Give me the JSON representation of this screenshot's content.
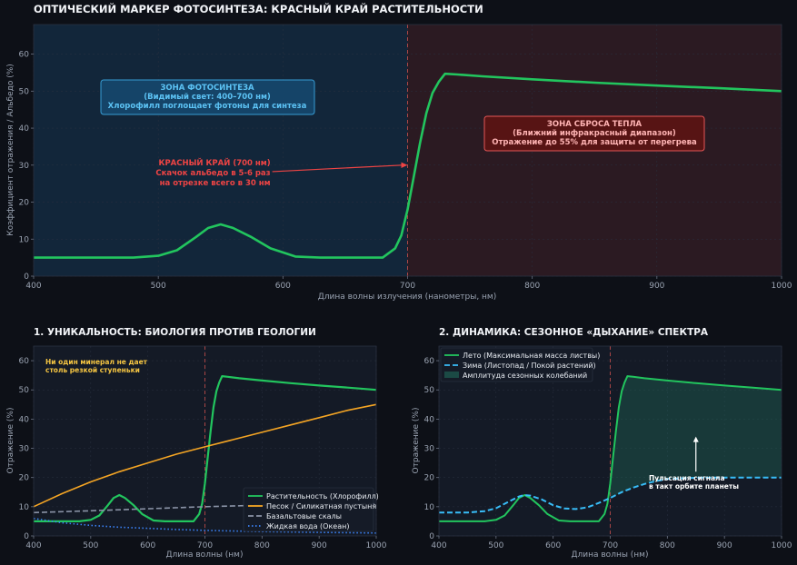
{
  "chart_data": [
    {
      "type": "line",
      "title": "ОПТИЧЕСКИЙ МАРКЕР ФОТОСИНТЕЗА: КРАСНЫЙ КРАЙ РАСТИТЕЛЬНОСТИ",
      "xlabel": "Длина волны излучения (нанометры, нм)",
      "ylabel": "Коэффициент отражения / Альбедо (%)",
      "xlim": [
        400,
        1000
      ],
      "ylim": [
        0,
        68
      ],
      "xticks": [
        400,
        500,
        600,
        700,
        800,
        900,
        1000
      ],
      "yticks": [
        0,
        10,
        20,
        30,
        40,
        50,
        60
      ],
      "series": [
        {
          "color": "#22c55e",
          "x": [
            400,
            450,
            480,
            500,
            515,
            530,
            540,
            550,
            560,
            575,
            590,
            610,
            630,
            650,
            680,
            690,
            695,
            700,
            705,
            710,
            715,
            720,
            725,
            730,
            740,
            760,
            800,
            850,
            900,
            950,
            1000
          ],
          "y": [
            5,
            5,
            5,
            5.5,
            7,
            10.5,
            13,
            14,
            13,
            10.5,
            7.5,
            5.3,
            5,
            5,
            5,
            7.5,
            11,
            18,
            27,
            36,
            44,
            49.5,
            52.5,
            54.7,
            54.5,
            54,
            53.2,
            52.3,
            51.5,
            50.8,
            50
          ]
        }
      ],
      "marker_x": 700,
      "zones": [
        {
          "from": 400,
          "to": 700,
          "color": "#12263a",
          "label_lines": [
            "ЗОНА ФОТОСИНТЕЗА",
            "(Видимый свет: 400–700 нм)",
            "Хлорофилл поглощает фотоны для синтеза"
          ]
        },
        {
          "from": 700,
          "to": 1000,
          "color": "#2b1a22",
          "label_lines": [
            "ЗОНА СБРОСА ТЕПЛА",
            "(Ближний инфракрасный диапазон)",
            "Отражение до 55% для защиты от перегрева"
          ]
        }
      ],
      "annotation": {
        "lines": [
          "КРАСНЫЙ КРАЙ (700 нм)",
          "Скачок альбедо в 5-6 раз",
          "на отрезке всего в 30 нм"
        ],
        "xy": [
          700,
          30
        ],
        "text_xy": [
          590,
          28
        ]
      },
      "grid": true,
      "legend": "none"
    },
    {
      "type": "line",
      "title": "1. УНИКАЛЬНОСТЬ: БИОЛОГИЯ ПРОТИВ ГЕОЛОГИИ",
      "xlabel": "Длина волны (нм)",
      "ylabel": "Отражение (%)",
      "xlim": [
        400,
        1000
      ],
      "ylim": [
        0,
        65
      ],
      "xticks": [
        400,
        500,
        600,
        700,
        800,
        900,
        1000
      ],
      "yticks": [
        0,
        10,
        20,
        30,
        40,
        50,
        60
      ],
      "marker_x": 700,
      "annotation": {
        "lines": [
          "Ни один минерал не дает",
          "столь резкой ступеньки"
        ],
        "xy": [
          420,
          57
        ]
      },
      "series": [
        {
          "name": "Растительность (Хлорофилл)",
          "color": "#22c55e",
          "style": "solid",
          "x": [
            400,
            450,
            480,
            500,
            515,
            530,
            540,
            550,
            560,
            575,
            590,
            610,
            630,
            650,
            680,
            690,
            695,
            700,
            705,
            710,
            715,
            720,
            725,
            730,
            740,
            760,
            800,
            850,
            900,
            950,
            1000
          ],
          "y": [
            5,
            5,
            5,
            5.5,
            7,
            10.5,
            13,
            14,
            13,
            10.5,
            7.5,
            5.3,
            5,
            5,
            5,
            7.5,
            11,
            18,
            27,
            36,
            44,
            49.5,
            52.5,
            54.7,
            54.5,
            54,
            53.2,
            52.3,
            51.5,
            50.8,
            50
          ]
        },
        {
          "name": "Песок / Силикатная пустыня",
          "color": "#f5a524",
          "style": "solid",
          "x": [
            400,
            450,
            500,
            550,
            600,
            650,
            700,
            750,
            800,
            850,
            900,
            950,
            1000
          ],
          "y": [
            10,
            14.5,
            18.5,
            22,
            25,
            28,
            30.5,
            33,
            35.5,
            38,
            40.5,
            43,
            45
          ]
        },
        {
          "name": "Базальтовые скалы",
          "color": "#8a93a6",
          "style": "dashed",
          "x": [
            400,
            500,
            600,
            700,
            800,
            900,
            1000
          ],
          "y": [
            8,
            8.6,
            9.3,
            10,
            10.5,
            10.8,
            11
          ]
        },
        {
          "name": "Жидкая вода (Океан)",
          "color": "#3b82f6",
          "style": "dotted",
          "x": [
            400,
            450,
            500,
            550,
            600,
            650,
            700,
            800,
            900,
            1000
          ],
          "y": [
            6,
            4.5,
            3.6,
            3,
            2.6,
            2.2,
            1.9,
            1.5,
            1.2,
            1
          ]
        }
      ],
      "legend": "bottom-right",
      "grid": true
    },
    {
      "type": "line",
      "title": "2. ДИНАМИКА: СЕЗОННОЕ «ДЫХАНИЕ» СПЕКТРА",
      "xlabel": "Длина волны (нм)",
      "ylabel": "Отражение (%)",
      "xlim": [
        400,
        1000
      ],
      "ylim": [
        0,
        65
      ],
      "xticks": [
        400,
        500,
        600,
        700,
        800,
        900,
        1000
      ],
      "yticks": [
        0,
        10,
        20,
        30,
        40,
        50,
        60
      ],
      "marker_x": 700,
      "series": [
        {
          "name": "Лето (Максимальная масса листвы)",
          "color": "#22c55e",
          "style": "solid",
          "x": [
            400,
            450,
            480,
            500,
            515,
            530,
            540,
            550,
            560,
            575,
            590,
            610,
            630,
            650,
            680,
            690,
            695,
            700,
            705,
            710,
            715,
            720,
            725,
            730,
            740,
            760,
            800,
            850,
            900,
            950,
            1000
          ],
          "y": [
            5,
            5,
            5,
            5.5,
            7,
            10.5,
            13,
            14,
            13,
            10.5,
            7.5,
            5.3,
            5,
            5,
            5,
            7.5,
            11,
            18,
            27,
            36,
            44,
            49.5,
            52.5,
            54.7,
            54.5,
            54,
            53.2,
            52.3,
            51.5,
            50.8,
            50
          ]
        },
        {
          "name": "Зима (Листопад / Покой растений)",
          "color": "#38bdf8",
          "style": "dashed",
          "x": [
            400,
            450,
            480,
            500,
            520,
            540,
            550,
            560,
            580,
            600,
            620,
            640,
            660,
            680,
            700,
            720,
            740,
            760,
            780,
            800,
            850,
            900,
            1000
          ],
          "y": [
            8,
            8,
            8.5,
            9.5,
            11.5,
            13.5,
            14,
            13.8,
            12.5,
            10.5,
            9.4,
            9.2,
            9.8,
            11.3,
            13,
            15,
            16.5,
            17.8,
            18.8,
            19.5,
            19.9,
            20,
            20
          ]
        }
      ],
      "fill_between": {
        "label": "Амплитуда сезонных колебаний",
        "color": "#1f6b5a",
        "from": 700,
        "to": 1000
      },
      "annotation": {
        "lines": [
          "Пульсация сигнала",
          "в такт орбите планеты"
        ],
        "xy": [
          850,
          34
        ],
        "text_xy": [
          850,
          18
        ]
      },
      "legend": "top-left",
      "grid": true
    }
  ]
}
